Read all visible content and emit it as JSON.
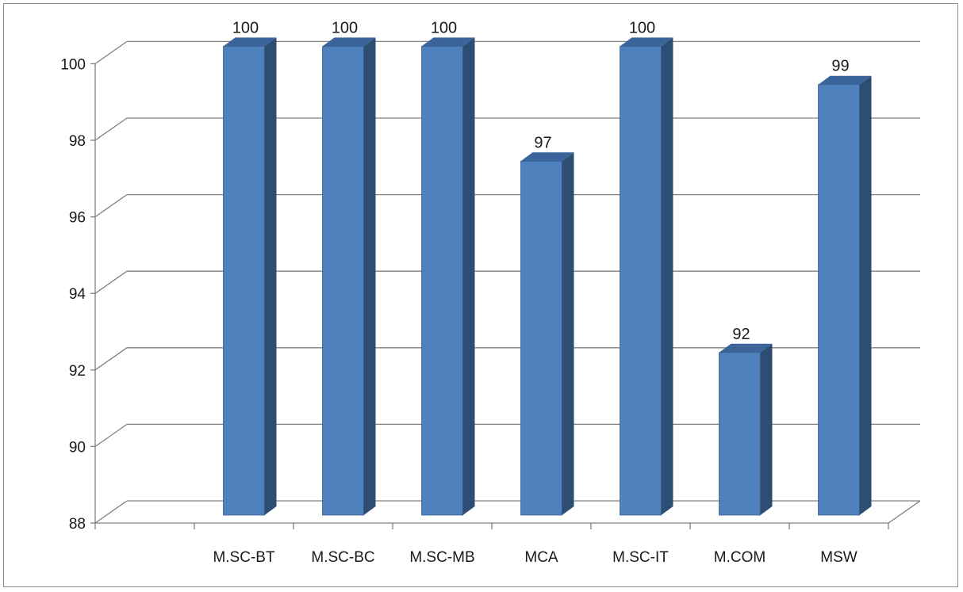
{
  "chart_data": {
    "type": "bar",
    "categories": [
      "",
      "M.SC-BT",
      "M.SC-BC",
      "M.SC-MB",
      "MCA",
      "M.SC-IT",
      "M.COM",
      "MSW"
    ],
    "values": [
      null,
      100,
      100,
      100,
      97,
      100,
      92,
      99
    ],
    "data_labels": [
      "",
      "100",
      "100",
      "100",
      "97",
      "100",
      "92",
      "99"
    ],
    "y_ticks": [
      "88",
      "90",
      "92",
      "94",
      "96",
      "98",
      "100"
    ],
    "ylim": [
      88,
      100
    ],
    "title": "",
    "xlabel": "",
    "ylabel": "",
    "grid": true,
    "legend": "none",
    "style": "3d-column",
    "colors": {
      "bar_front": "#4f81bd",
      "bar_side": "#2e4d73",
      "bar_top": "#3b659a",
      "grid": "#808080",
      "frame": "#8c8c8c"
    }
  }
}
